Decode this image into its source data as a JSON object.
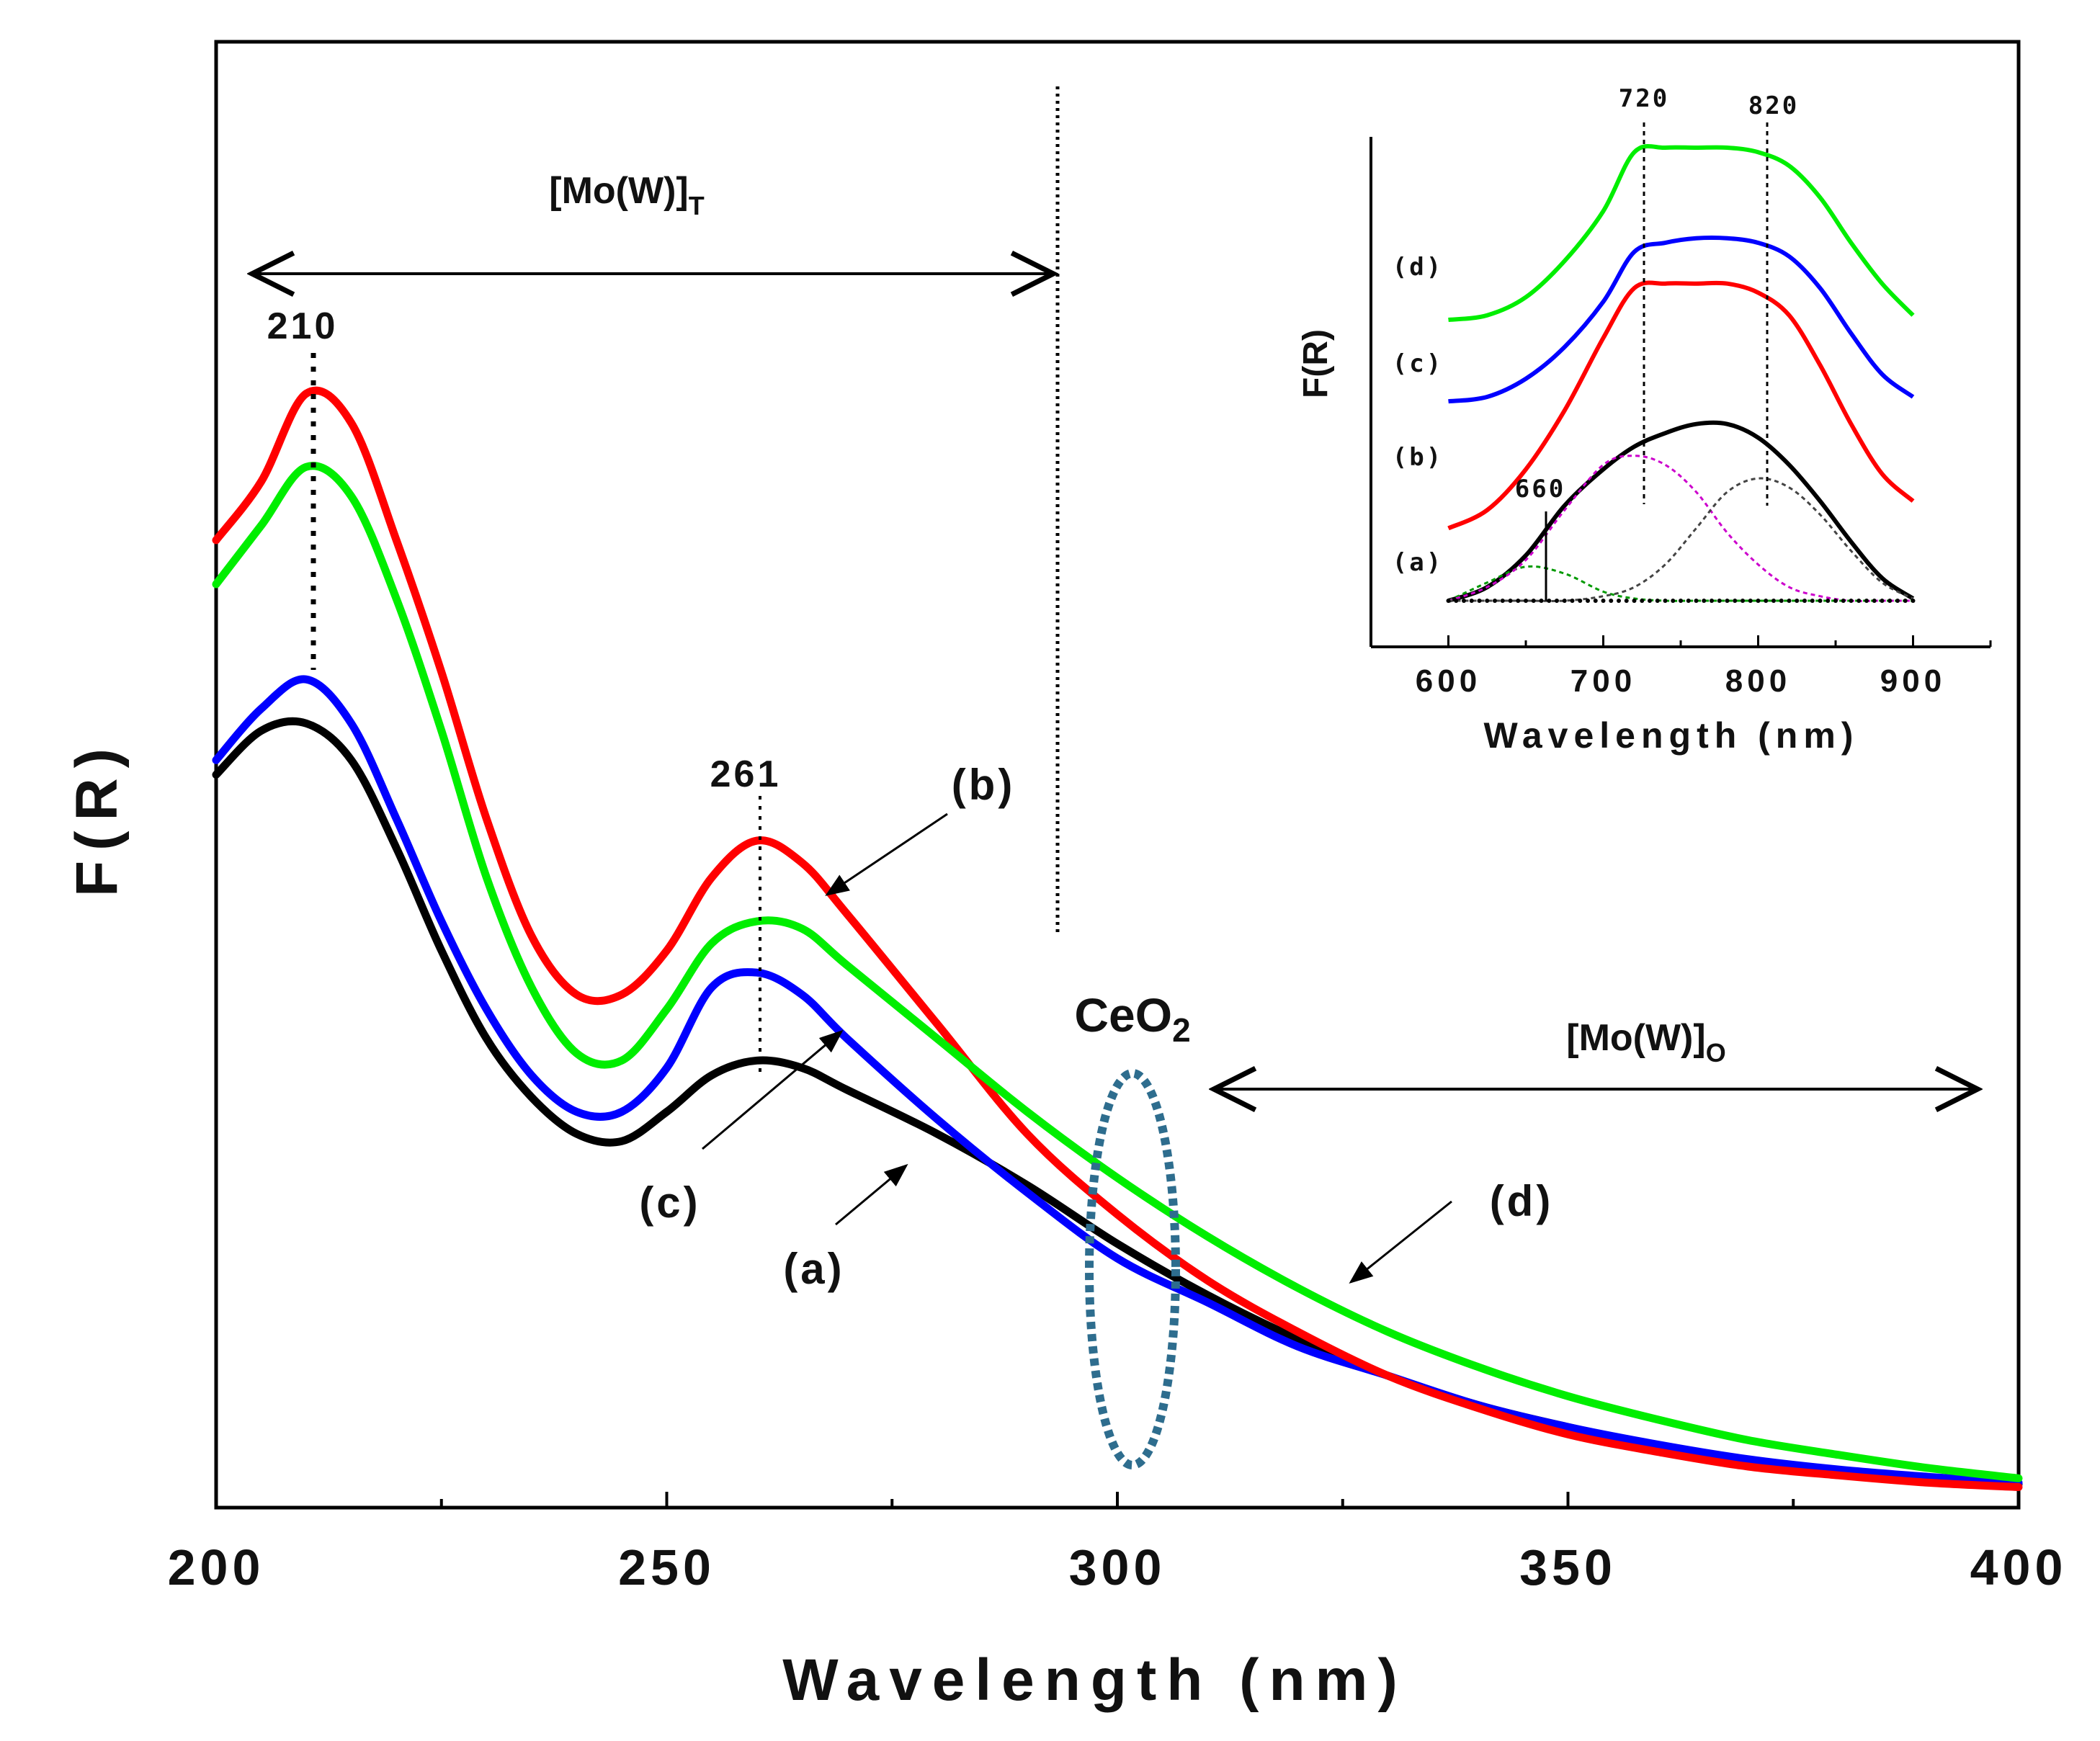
{
  "chart_data": [
    {
      "type": "line",
      "title": "",
      "xlabel": "Wavelength (nm)",
      "ylabel": "F(R)",
      "xlim": [
        200,
        400
      ],
      "ylim": [
        0,
        1
      ],
      "xticks": [
        "200",
        "250",
        "300",
        "350",
        "400"
      ],
      "x": [
        200,
        205,
        210,
        215,
        220,
        225,
        230,
        235,
        240,
        245,
        250,
        255,
        260,
        265,
        270,
        280,
        290,
        300,
        310,
        320,
        330,
        340,
        350,
        360,
        370,
        380,
        390,
        400
      ],
      "series": [
        {
          "name": "(a)",
          "color": "#000000",
          "values": [
            0.5,
            0.53,
            0.535,
            0.51,
            0.45,
            0.38,
            0.32,
            0.28,
            0.255,
            0.25,
            0.27,
            0.295,
            0.305,
            0.3,
            0.285,
            0.255,
            0.22,
            0.18,
            0.145,
            0.115,
            0.09,
            0.07,
            0.055,
            0.042,
            0.032,
            0.025,
            0.02,
            0.016
          ]
        },
        {
          "name": "(b)",
          "color": "#ff0000",
          "values": [
            0.66,
            0.7,
            0.76,
            0.74,
            0.66,
            0.57,
            0.47,
            0.39,
            0.35,
            0.35,
            0.38,
            0.43,
            0.455,
            0.44,
            0.405,
            0.33,
            0.255,
            0.2,
            0.155,
            0.12,
            0.09,
            0.068,
            0.05,
            0.038,
            0.028,
            0.022,
            0.017,
            0.014
          ]
        },
        {
          "name": "(c)",
          "color": "#0000ff",
          "values": [
            0.51,
            0.545,
            0.565,
            0.535,
            0.47,
            0.4,
            0.34,
            0.295,
            0.27,
            0.27,
            0.3,
            0.355,
            0.365,
            0.35,
            0.32,
            0.265,
            0.215,
            0.17,
            0.14,
            0.11,
            0.09,
            0.07,
            0.055,
            0.043,
            0.033,
            0.026,
            0.021,
            0.017
          ]
        },
        {
          "name": "(d)",
          "color": "#00ee00",
          "values": [
            0.63,
            0.67,
            0.71,
            0.69,
            0.62,
            0.53,
            0.43,
            0.355,
            0.31,
            0.305,
            0.34,
            0.385,
            0.4,
            0.395,
            0.37,
            0.32,
            0.27,
            0.225,
            0.185,
            0.15,
            0.12,
            0.096,
            0.076,
            0.06,
            0.046,
            0.036,
            0.027,
            0.02
          ]
        }
      ],
      "annotations": {
        "peak_1": "210",
        "peak_2": "261",
        "tetra_region": "[Mo(W)]",
        "tetra_subscript": "T",
        "octa_region": "[Mo(W)]",
        "octa_subscript": "O",
        "ceo2": "CeO",
        "ceo2_subscript": "2",
        "label_a": "(a)",
        "label_b": "(b)",
        "label_c": "(c)",
        "label_d": "(d)"
      }
    },
    {
      "type": "line",
      "title": "",
      "xlabel": "Wavelength (nm)",
      "ylabel": "F(R)",
      "xlim": [
        550,
        950
      ],
      "ylim": [
        0,
        1
      ],
      "xticks": [
        "600",
        "700",
        "800",
        "900"
      ],
      "x": [
        600,
        625,
        650,
        675,
        700,
        720,
        740,
        760,
        780,
        800,
        820,
        840,
        860,
        880,
        900
      ],
      "series": [
        {
          "name": "(d)",
          "color": "#00ee00",
          "values": [
            0.62,
            0.63,
            0.67,
            0.75,
            0.86,
            0.99,
            1.0,
            1.0,
            1.0,
            0.99,
            0.96,
            0.89,
            0.79,
            0.7,
            0.63
          ]
        },
        {
          "name": "(c)",
          "color": "#0000ff",
          "values": [
            0.44,
            0.45,
            0.49,
            0.56,
            0.66,
            0.77,
            0.79,
            0.8,
            0.8,
            0.79,
            0.76,
            0.69,
            0.59,
            0.5,
            0.45
          ]
        },
        {
          "name": "(b)",
          "color": "#ff0000",
          "values": [
            0.16,
            0.2,
            0.29,
            0.42,
            0.58,
            0.69,
            0.7,
            0.7,
            0.7,
            0.68,
            0.63,
            0.52,
            0.39,
            0.28,
            0.22
          ]
        },
        {
          "name": "(a) envelope",
          "color": "#000000",
          "values": [
            0.0,
            0.03,
            0.1,
            0.21,
            0.29,
            0.34,
            0.37,
            0.39,
            0.39,
            0.36,
            0.3,
            0.22,
            0.13,
            0.05,
            0.005
          ]
        },
        {
          "name": "fit 660",
          "color": "#009900",
          "values": [
            0.0,
            0.04,
            0.075,
            0.06,
            0.02,
            0.005,
            0,
            0,
            0,
            0,
            0,
            0,
            0,
            0,
            0
          ]
        },
        {
          "name": "fit 720",
          "color": "#cc00cc",
          "values": [
            0.0,
            0.03,
            0.09,
            0.2,
            0.3,
            0.32,
            0.3,
            0.24,
            0.15,
            0.08,
            0.03,
            0.01,
            0,
            0,
            0
          ]
        },
        {
          "name": "fit 820",
          "color": "#444444",
          "values": [
            0,
            0,
            0,
            0,
            0.01,
            0.03,
            0.08,
            0.16,
            0.24,
            0.27,
            0.25,
            0.19,
            0.11,
            0.04,
            0.005
          ]
        }
      ],
      "annotations": {
        "peak_660": "660",
        "peak_720": "720",
        "peak_820": "820",
        "label_a": "(a)",
        "label_b": "(b)",
        "label_c": "(c)",
        "label_d": "(d)"
      }
    }
  ]
}
